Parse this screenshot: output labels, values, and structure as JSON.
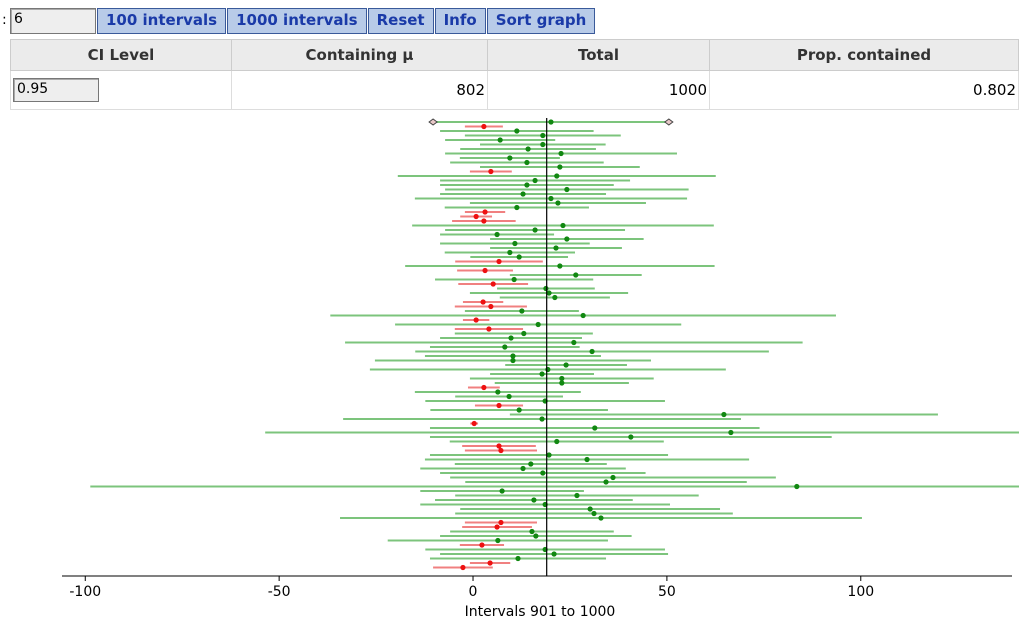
{
  "toolbar": {
    "sample_size": 6,
    "buttons": [
      "100 intervals",
      "1000 intervals",
      "Reset",
      "Info",
      "Sort graph"
    ]
  },
  "table": {
    "headers": [
      "CI Level",
      "Containing μ",
      "Total",
      "Prop. contained"
    ],
    "row": [
      0.95,
      802,
      1000,
      0.802
    ]
  },
  "chart_data": {
    "type": "interval",
    "x_label": "Intervals 901 to 1000",
    "mu": 19,
    "contains_color": "#7cc47c",
    "contains_dot_color": "#118811",
    "missing_color": "#f08080",
    "missing_dot_color": "#ee1111",
    "xlim": [
      -106,
      139
    ],
    "xticks": [
      -100,
      -50,
      0,
      50,
      100
    ],
    "means": [
      20.1,
      2.8,
      11.3,
      18.0,
      7.0,
      18.0,
      14.2,
      22.7,
      9.5,
      13.9,
      22.4,
      4.6,
      21.6,
      16.0,
      13.9,
      24.2,
      12.9,
      20.1,
      21.9,
      11.3,
      3.1,
      0.8,
      2.8,
      23.2,
      16.0,
      6.2,
      24.2,
      10.8,
      21.4,
      9.5,
      11.9,
      6.7,
      22.4,
      3.1,
      26.5,
      10.6,
      5.2,
      18.8,
      19.6,
      21.1,
      2.6,
      4.6,
      12.6,
      28.4,
      0.8,
      16.8,
      4.1,
      13.1,
      9.8,
      26.0,
      8.2,
      30.7,
      10.3,
      10.3,
      24.0,
      19.3,
      17.8,
      22.9,
      22.9,
      2.8,
      6.4,
      9.3,
      18.6,
      6.7,
      11.9,
      64.7,
      17.8,
      0.3,
      31.4,
      66.5,
      40.7,
      21.6,
      6.7,
      7.2,
      19.6,
      29.4,
      14.9,
      12.9,
      18.0,
      36.1,
      34.3,
      83.5,
      7.5,
      26.8,
      15.7,
      18.6,
      30.2,
      31.2,
      33.0,
      7.2,
      6.2,
      15.2,
      16.2,
      6.4,
      2.3,
      18.6,
      20.9,
      11.6,
      4.4,
      -2.6
    ],
    "margins": [
      30.4,
      4.9,
      19.8,
      20.1,
      14.2,
      16.2,
      17.5,
      29.9,
      12.9,
      19.8,
      20.6,
      5.4,
      41.0,
      24.5,
      22.4,
      31.4,
      21.4,
      35.1,
      22.7,
      18.6,
      5.2,
      4.1,
      8.2,
      38.9,
      23.2,
      14.7,
      19.8,
      19.3,
      17.0,
      16.8,
      12.6,
      11.3,
      39.9,
      7.2,
      17.0,
      20.4,
      9.0,
      12.6,
      20.4,
      14.2,
      5.2,
      9.3,
      14.7,
      65.2,
      3.4,
      36.9,
      8.8,
      17.8,
      18.3,
      59.0,
      19.3,
      45.6,
      22.7,
      35.6,
      15.7,
      45.9,
      13.4,
      23.7,
      17.3,
      4.1,
      21.4,
      13.9,
      30.9,
      6.2,
      22.9,
      55.2,
      51.3,
      1.0,
      42.5,
      120.1,
      51.8,
      27.6,
      9.5,
      9.3,
      30.7,
      41.8,
      19.6,
      26.5,
      26.5,
      42.0,
      36.3,
      182.2,
      21.1,
      31.4,
      25.5,
      32.2,
      33.5,
      35.8,
      67.3,
      9.3,
      9.0,
      21.1,
      24.7,
      28.4,
      5.7,
      30.9,
      29.4,
      22.7,
      5.2,
      7.7
    ]
  }
}
